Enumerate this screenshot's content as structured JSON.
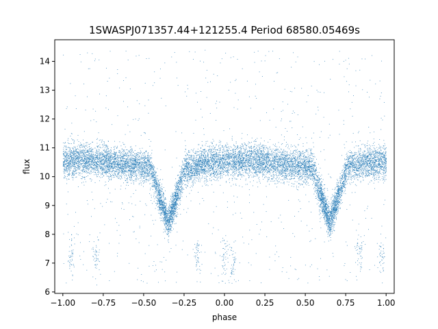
{
  "chart_data": {
    "type": "scatter",
    "title": "1SWASPJ071357.44+121255.4 Period 68580.05469s",
    "xlabel": "phase",
    "ylabel": "flux",
    "xlim": [
      -1.05,
      1.05
    ],
    "ylim": [
      5.95,
      14.75
    ],
    "x_ticks": [
      -1.0,
      -0.75,
      -0.5,
      -0.25,
      0.0,
      0.25,
      0.5,
      0.75,
      1.0
    ],
    "x_tick_labels": [
      "−1.00",
      "−0.75",
      "−0.50",
      "−0.25",
      "0.00",
      "0.25",
      "0.50",
      "0.75",
      "1.00"
    ],
    "y_ticks": [
      6,
      7,
      8,
      9,
      10,
      11,
      12,
      13,
      14
    ],
    "y_tick_labels": [
      "6",
      "7",
      "8",
      "9",
      "10",
      "11",
      "12",
      "13",
      "14"
    ],
    "grid": false,
    "legend": "none",
    "point_color": "#1f77b4",
    "series": [
      {
        "baseline_flux": 10.45,
        "scatter_sigma": 0.28,
        "primary_eclipse": {
          "phase": -0.35,
          "min_flux": 8.5,
          "half_width": 0.11
        },
        "secondary_eclipse": {
          "phase": 0.65,
          "min_flux": 8.5,
          "half_width": 0.11
        },
        "shallow_dip": {
          "phase": -0.2,
          "min_flux": 10.1
        },
        "outlier_flux_range": [
          6.3,
          14.4
        ],
        "faint_clusters": [
          {
            "phase": -0.95,
            "flux": 7.3
          },
          {
            "phase": -0.8,
            "flux": 7.2
          },
          {
            "phase": -0.17,
            "flux": 7.3
          },
          {
            "phase": 0.0,
            "flux": 7.3
          },
          {
            "phase": 0.05,
            "flux": 7.0
          },
          {
            "phase": 0.83,
            "flux": 7.3
          },
          {
            "phase": 0.97,
            "flux": 7.3
          }
        ]
      }
    ]
  }
}
